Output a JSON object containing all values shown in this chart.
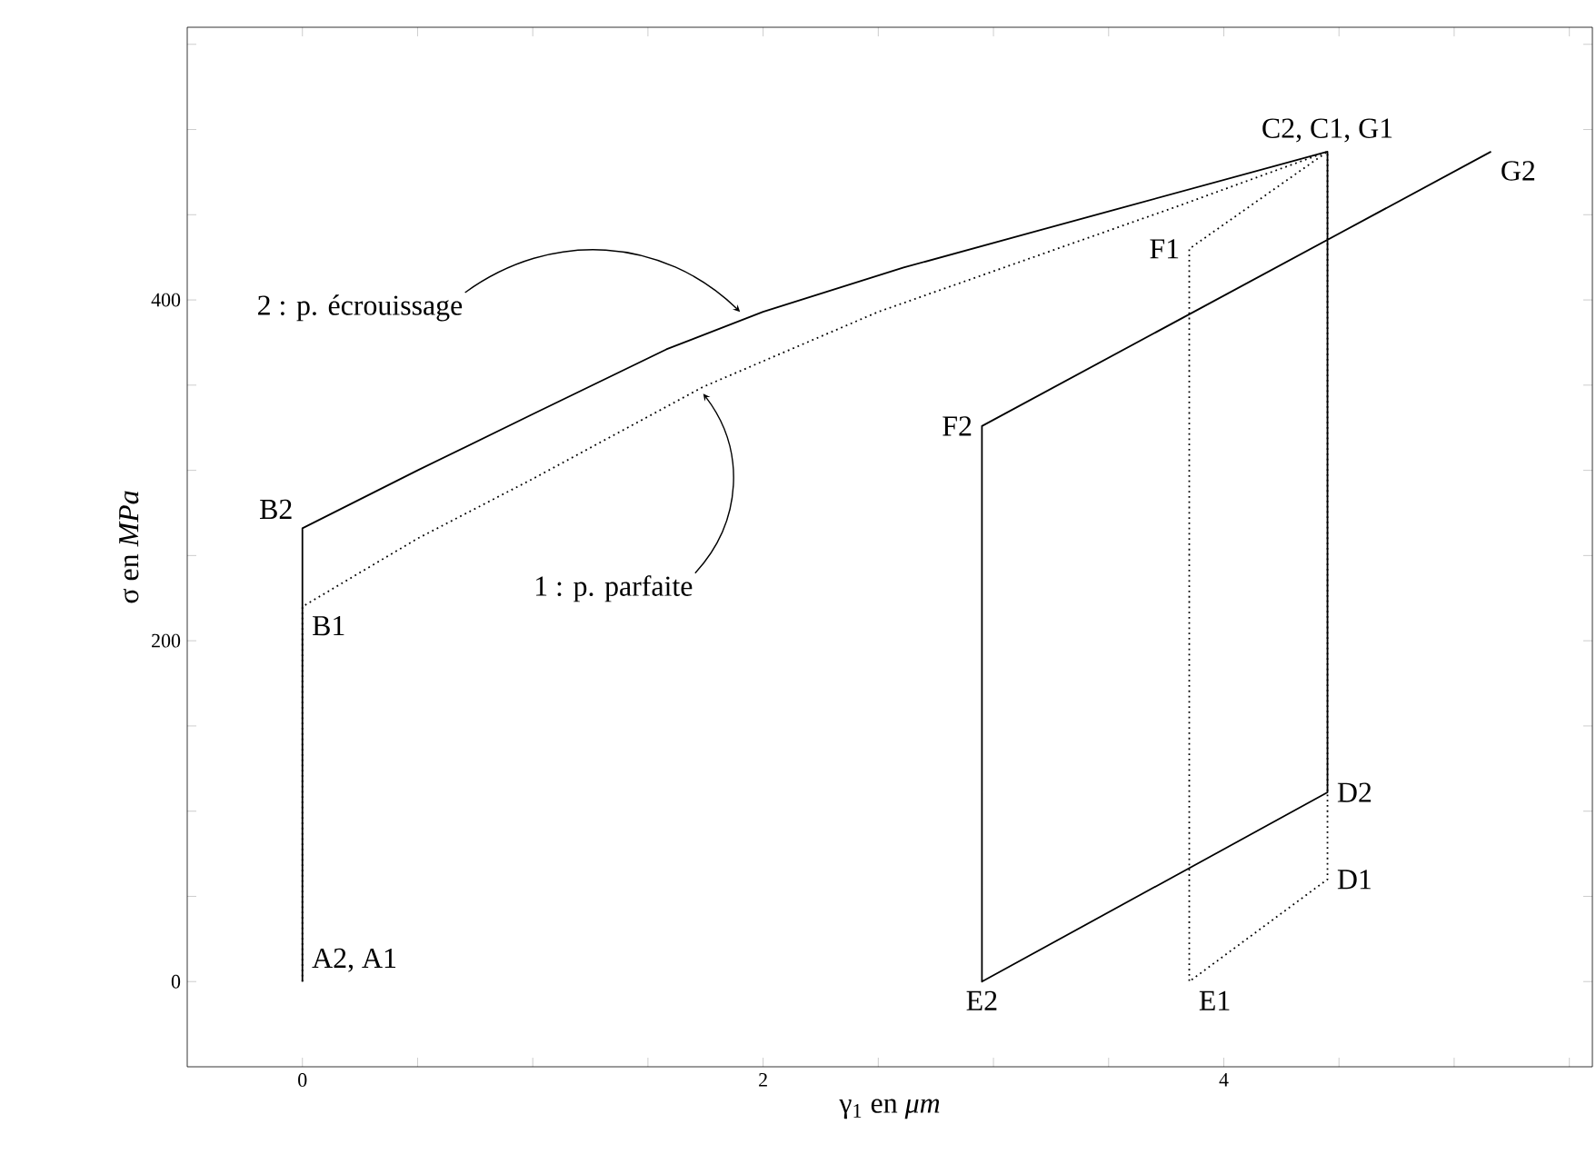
{
  "chart_data": {
    "type": "line",
    "xlabel": "γ$_{1}$ en *μm*",
    "ylabel": "σ en *MPa*",
    "xlim": [
      -0.5,
      5.6
    ],
    "ylim": [
      -50,
      560
    ],
    "xticks": [
      0,
      {
        "value": 0.5,
        "label": null
      },
      {
        "value": 1,
        "label": null
      },
      {
        "value": 1.5,
        "label": null
      },
      2,
      {
        "value": 2.5,
        "label": null
      },
      {
        "value": 3,
        "label": null
      },
      {
        "value": 3.5,
        "label": null
      },
      4,
      {
        "value": 4.5,
        "label": null
      },
      {
        "value": 5,
        "label": null
      },
      {
        "value": 5.5,
        "label": null
      }
    ],
    "yticks": [
      0,
      {
        "value": 50,
        "label": null
      },
      {
        "value": 100,
        "label": null
      },
      {
        "value": 150,
        "label": null
      },
      200,
      {
        "value": 250,
        "label": null
      },
      {
        "value": 300,
        "label": null
      },
      {
        "value": 350,
        "label": null
      },
      400,
      {
        "value": 450,
        "label": null
      },
      {
        "value": 500,
        "label": null
      },
      {
        "value": 550,
        "label": null
      }
    ],
    "marker": "none",
    "series": [
      {
        "color": "#000000",
        "line_style": "solid",
        "x": [
          0,
          0,
          0.5,
          1.0,
          1.58,
          2.0,
          2.61,
          3.5,
          4.45,
          4.45,
          2.95,
          2.95,
          5.16
        ],
        "values": [
          0,
          266,
          300,
          333,
          371,
          393,
          419,
          452,
          487,
          111,
          0,
          326,
          487
        ]
      },
      {
        "color": "#000000",
        "line_style": "dotted",
        "x": [
          0,
          0,
          0.5,
          1.0,
          1.74,
          2.5,
          3.8,
          4.45,
          4.45,
          3.85,
          3.85,
          4.45
        ],
        "values": [
          0,
          220,
          260,
          295,
          349,
          393,
          455,
          487,
          60,
          0,
          430,
          487
        ]
      }
    ],
    "annotations": [
      {
        "text": "A2, A1",
        "x": 0,
        "y": 0
      },
      {
        "text": "B2",
        "x": 0,
        "y": 266
      },
      {
        "text": "B1",
        "x": 0,
        "y": 220
      },
      {
        "text": "C2, C1, G1",
        "x": 4.45,
        "y": 487
      },
      {
        "text": "D2",
        "x": 4.45,
        "y": 111
      },
      {
        "text": "D1",
        "x": 4.45,
        "y": 60
      },
      {
        "text": "E2",
        "x": 2.95,
        "y": 0
      },
      {
        "text": "E1",
        "x": 3.85,
        "y": 0
      },
      {
        "text": "F2",
        "x": 2.95,
        "y": 326
      },
      {
        "text": "F1",
        "x": 3.85,
        "y": 430
      },
      {
        "text": "G2",
        "x": 5.16,
        "y": 487
      },
      {
        "text": "2 : p. écrouissage",
        "x": 1.9,
        "y": 393
      },
      {
        "text": "1 : p. parfaite",
        "x": 1.74,
        "y": 345
      }
    ]
  }
}
